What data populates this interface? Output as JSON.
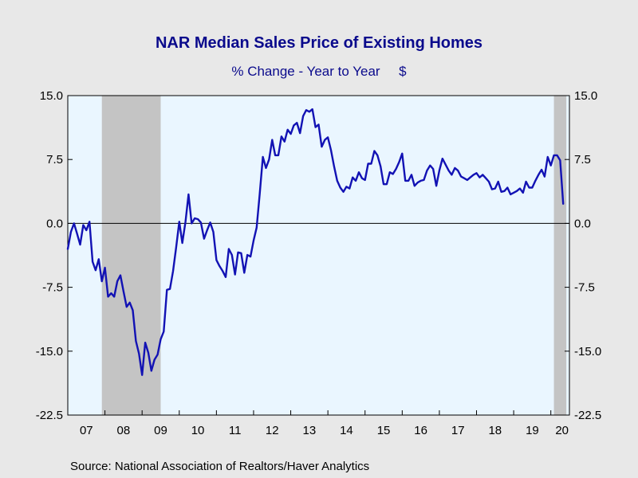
{
  "colors": {
    "background": "#e8e8e8",
    "plot_background": "#eaf6ff",
    "line": "#1212b4",
    "recession": "#c4c4c4",
    "title": "#0a0a8c",
    "axis": "#000000"
  },
  "chart_data": {
    "type": "line",
    "title": "NAR Median Sales Price of Existing Homes",
    "subtitle": "% Change - Year to Year     $",
    "source": "Source:  National Association of Realtors/Haver Analytics",
    "xlim": [
      2007.0,
      2020.5
    ],
    "ylim": [
      -22.5,
      15.0
    ],
    "y_ticks": [
      15.0,
      7.5,
      0.0,
      -7.5,
      -15.0,
      -22.5
    ],
    "y_tick_labels": [
      "15.0",
      "7.5",
      "0.0",
      "-7.5",
      "-15.0",
      "-22.5"
    ],
    "x_tick_labels": [
      {
        "label": "07",
        "x": 2007.5
      },
      {
        "label": "08",
        "x": 2008.5
      },
      {
        "label": "09",
        "x": 2009.5
      },
      {
        "label": "10",
        "x": 2010.5
      },
      {
        "label": "11",
        "x": 2011.5
      },
      {
        "label": "12",
        "x": 2012.5
      },
      {
        "label": "13",
        "x": 2013.5
      },
      {
        "label": "14",
        "x": 2014.5
      },
      {
        "label": "15",
        "x": 2015.5
      },
      {
        "label": "16",
        "x": 2016.5
      },
      {
        "label": "17",
        "x": 2017.5
      },
      {
        "label": "18",
        "x": 2018.5
      },
      {
        "label": "19",
        "x": 2019.5
      },
      {
        "label": "20",
        "x": 2020.3
      }
    ],
    "x_year_boundaries": [
      2008,
      2009,
      2010,
      2011,
      2012,
      2013,
      2014,
      2015,
      2016,
      2017,
      2018,
      2019,
      2020
    ],
    "recessions": [
      {
        "start": 2007.917,
        "end": 2009.5
      },
      {
        "start": 2020.083,
        "end": 2020.417
      }
    ],
    "series": [
      {
        "values": [
          [
            2007.0,
            -3.0
          ],
          [
            2007.083,
            -1.0
          ],
          [
            2007.167,
            0.0
          ],
          [
            2007.25,
            -1.2
          ],
          [
            2007.333,
            -2.5
          ],
          [
            2007.417,
            -0.2
          ],
          [
            2007.5,
            -0.8
          ],
          [
            2007.583,
            0.2
          ],
          [
            2007.667,
            -4.5
          ],
          [
            2007.75,
            -5.5
          ],
          [
            2007.833,
            -4.2
          ],
          [
            2007.917,
            -6.8
          ],
          [
            2008.0,
            -5.2
          ],
          [
            2008.083,
            -8.6
          ],
          [
            2008.167,
            -8.2
          ],
          [
            2008.25,
            -8.6
          ],
          [
            2008.333,
            -6.8
          ],
          [
            2008.417,
            -6.1
          ],
          [
            2008.5,
            -8.0
          ],
          [
            2008.583,
            -9.8
          ],
          [
            2008.667,
            -9.3
          ],
          [
            2008.75,
            -10.2
          ],
          [
            2008.833,
            -13.8
          ],
          [
            2008.917,
            -15.3
          ],
          [
            2009.0,
            -17.8
          ],
          [
            2009.083,
            -14.0
          ],
          [
            2009.167,
            -15.2
          ],
          [
            2009.25,
            -17.3
          ],
          [
            2009.333,
            -16.0
          ],
          [
            2009.417,
            -15.4
          ],
          [
            2009.5,
            -13.6
          ],
          [
            2009.583,
            -12.7
          ],
          [
            2009.667,
            -7.8
          ],
          [
            2009.75,
            -7.7
          ],
          [
            2009.833,
            -5.6
          ],
          [
            2009.917,
            -2.8
          ],
          [
            2010.0,
            0.2
          ],
          [
            2010.083,
            -2.3
          ],
          [
            2010.167,
            0.2
          ],
          [
            2010.25,
            3.4
          ],
          [
            2010.333,
            0.0
          ],
          [
            2010.417,
            0.6
          ],
          [
            2010.5,
            0.5
          ],
          [
            2010.583,
            0.1
          ],
          [
            2010.667,
            -1.8
          ],
          [
            2010.75,
            -0.8
          ],
          [
            2010.833,
            0.1
          ],
          [
            2010.917,
            -1.0
          ],
          [
            2011.0,
            -4.3
          ],
          [
            2011.083,
            -5.0
          ],
          [
            2011.167,
            -5.6
          ],
          [
            2011.25,
            -6.3
          ],
          [
            2011.333,
            -3.0
          ],
          [
            2011.417,
            -3.7
          ],
          [
            2011.5,
            -6.0
          ],
          [
            2011.583,
            -3.4
          ],
          [
            2011.667,
            -3.5
          ],
          [
            2011.75,
            -5.8
          ],
          [
            2011.833,
            -3.7
          ],
          [
            2011.917,
            -3.9
          ],
          [
            2012.0,
            -2.0
          ],
          [
            2012.083,
            -0.5
          ],
          [
            2012.167,
            3.5
          ],
          [
            2012.25,
            7.8
          ],
          [
            2012.333,
            6.5
          ],
          [
            2012.417,
            7.5
          ],
          [
            2012.5,
            9.8
          ],
          [
            2012.583,
            8.0
          ],
          [
            2012.667,
            8.0
          ],
          [
            2012.75,
            10.2
          ],
          [
            2012.833,
            9.6
          ],
          [
            2012.917,
            11.0
          ],
          [
            2013.0,
            10.5
          ],
          [
            2013.083,
            11.5
          ],
          [
            2013.167,
            11.8
          ],
          [
            2013.25,
            10.6
          ],
          [
            2013.333,
            12.6
          ],
          [
            2013.417,
            13.3
          ],
          [
            2013.5,
            13.1
          ],
          [
            2013.583,
            13.4
          ],
          [
            2013.667,
            11.3
          ],
          [
            2013.75,
            11.6
          ],
          [
            2013.833,
            9.0
          ],
          [
            2013.917,
            9.8
          ],
          [
            2014.0,
            10.1
          ],
          [
            2014.083,
            8.6
          ],
          [
            2014.167,
            6.7
          ],
          [
            2014.25,
            5.0
          ],
          [
            2014.333,
            4.2
          ],
          [
            2014.417,
            3.7
          ],
          [
            2014.5,
            4.3
          ],
          [
            2014.583,
            4.1
          ],
          [
            2014.667,
            5.4
          ],
          [
            2014.75,
            5.0
          ],
          [
            2014.833,
            6.0
          ],
          [
            2014.917,
            5.3
          ],
          [
            2015.0,
            5.1
          ],
          [
            2015.083,
            7.0
          ],
          [
            2015.167,
            7.0
          ],
          [
            2015.25,
            8.5
          ],
          [
            2015.333,
            8.0
          ],
          [
            2015.417,
            6.7
          ],
          [
            2015.5,
            4.6
          ],
          [
            2015.583,
            4.6
          ],
          [
            2015.667,
            6.0
          ],
          [
            2015.75,
            5.8
          ],
          [
            2015.833,
            6.4
          ],
          [
            2015.917,
            7.2
          ],
          [
            2016.0,
            8.2
          ],
          [
            2016.083,
            5.0
          ],
          [
            2016.167,
            5.0
          ],
          [
            2016.25,
            5.7
          ],
          [
            2016.333,
            4.4
          ],
          [
            2016.417,
            4.8
          ],
          [
            2016.5,
            5.0
          ],
          [
            2016.583,
            5.1
          ],
          [
            2016.667,
            6.2
          ],
          [
            2016.75,
            6.8
          ],
          [
            2016.833,
            6.4
          ],
          [
            2016.917,
            4.4
          ],
          [
            2017.0,
            6.2
          ],
          [
            2017.083,
            7.6
          ],
          [
            2017.167,
            6.9
          ],
          [
            2017.25,
            6.2
          ],
          [
            2017.333,
            5.7
          ],
          [
            2017.417,
            6.5
          ],
          [
            2017.5,
            6.2
          ],
          [
            2017.583,
            5.5
          ],
          [
            2017.667,
            5.3
          ],
          [
            2017.75,
            5.1
          ],
          [
            2017.833,
            5.4
          ],
          [
            2017.917,
            5.7
          ],
          [
            2018.0,
            5.9
          ],
          [
            2018.083,
            5.4
          ],
          [
            2018.167,
            5.7
          ],
          [
            2018.25,
            5.3
          ],
          [
            2018.333,
            4.9
          ],
          [
            2018.417,
            4.0
          ],
          [
            2018.5,
            4.1
          ],
          [
            2018.583,
            4.9
          ],
          [
            2018.667,
            3.7
          ],
          [
            2018.75,
            3.8
          ],
          [
            2018.833,
            4.2
          ],
          [
            2018.917,
            3.4
          ],
          [
            2019.0,
            3.6
          ],
          [
            2019.083,
            3.8
          ],
          [
            2019.167,
            4.1
          ],
          [
            2019.25,
            3.6
          ],
          [
            2019.333,
            4.9
          ],
          [
            2019.417,
            4.2
          ],
          [
            2019.5,
            4.2
          ],
          [
            2019.583,
            5.0
          ],
          [
            2019.667,
            5.7
          ],
          [
            2019.75,
            6.3
          ],
          [
            2019.833,
            5.5
          ],
          [
            2019.917,
            7.8
          ],
          [
            2020.0,
            6.8
          ],
          [
            2020.083,
            8.0
          ],
          [
            2020.167,
            8.0
          ],
          [
            2020.25,
            7.4
          ],
          [
            2020.333,
            2.3
          ]
        ]
      }
    ]
  }
}
